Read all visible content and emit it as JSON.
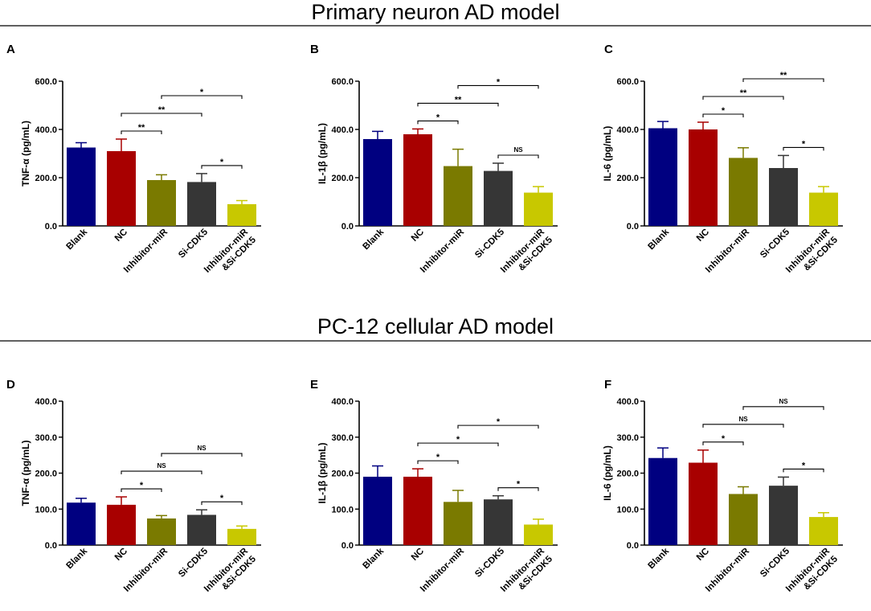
{
  "sections": [
    {
      "title": "Primary neuron AD model"
    },
    {
      "title": "PC-12 cellular AD model"
    }
  ],
  "colors": {
    "Blank": "#000080",
    "NC": "#a80000",
    "Inhibitor-miR": "#7a7a00",
    "Si-CDK5": "#363636",
    "Inhibitor-miR &Si-CDK5": "#c8c800"
  },
  "chart_data": [
    {
      "panel": "A",
      "type": "bar",
      "ylabel": "TNF-α (pg/mL)",
      "ylim": [
        0,
        600
      ],
      "yticks": [
        "0.0",
        "200.0",
        "400.0",
        "600.0"
      ],
      "categories": [
        "Blank",
        "NC",
        "Inhibitor-miR",
        "Si-CDK5",
        "Inhibitor-miR &Si-CDK5"
      ],
      "values": [
        325,
        310,
        190,
        182,
        90
      ],
      "errors": [
        20,
        50,
        22,
        35,
        15
      ],
      "comparisons": [
        {
          "from": 1,
          "to": 3,
          "label": "**"
        },
        {
          "from": 1,
          "to": 2,
          "label": "**"
        },
        {
          "from": 2,
          "to": 4,
          "label": "*"
        },
        {
          "from": 3,
          "to": 4,
          "label": "*"
        }
      ]
    },
    {
      "panel": "B",
      "type": "bar",
      "ylabel": "IL-1β (pg/mL)",
      "ylim": [
        0,
        600
      ],
      "yticks": [
        "0.0",
        "200.0",
        "400.0",
        "600.0"
      ],
      "categories": [
        "Blank",
        "NC",
        "Inhibitor-miR",
        "Si-CDK5",
        "Inhibitor-miR &Si-CDK5"
      ],
      "values": [
        360,
        380,
        248,
        228,
        138
      ],
      "errors": [
        32,
        22,
        70,
        32,
        25
      ],
      "comparisons": [
        {
          "from": 1,
          "to": 3,
          "label": "**"
        },
        {
          "from": 1,
          "to": 2,
          "label": "*"
        },
        {
          "from": 2,
          "to": 4,
          "label": "*"
        },
        {
          "from": 3,
          "to": 4,
          "label": "NS"
        }
      ]
    },
    {
      "panel": "C",
      "type": "bar",
      "ylabel": "IL-6 (pg/mL)",
      "ylim": [
        0,
        600
      ],
      "yticks": [
        "0.0",
        "200.0",
        "400.0",
        "600.0"
      ],
      "categories": [
        "Blank",
        "NC",
        "Inhibitor-miR",
        "Si-CDK5",
        "Inhibitor-miR &Si-CDK5"
      ],
      "values": [
        405,
        400,
        282,
        240,
        138
      ],
      "errors": [
        28,
        30,
        42,
        52,
        25
      ],
      "comparisons": [
        {
          "from": 1,
          "to": 3,
          "label": "**"
        },
        {
          "from": 1,
          "to": 2,
          "label": "*"
        },
        {
          "from": 2,
          "to": 4,
          "label": "**"
        },
        {
          "from": 3,
          "to": 4,
          "label": "*"
        }
      ]
    },
    {
      "panel": "D",
      "type": "bar",
      "ylabel": "TNF-α (pg/mL)",
      "ylim": [
        0,
        400
      ],
      "yticks": [
        "0.0",
        "100.0",
        "200.0",
        "300.0",
        "400.0"
      ],
      "categories": [
        "Blank",
        "NC",
        "Inhibitor-miR",
        "Si-CDK5",
        "Inhibitor-miR &Si-CDK5"
      ],
      "values": [
        118,
        112,
        74,
        84,
        45
      ],
      "errors": [
        12,
        22,
        8,
        14,
        8
      ],
      "comparisons": [
        {
          "from": 1,
          "to": 3,
          "label": "NS"
        },
        {
          "from": 1,
          "to": 2,
          "label": "*"
        },
        {
          "from": 2,
          "to": 4,
          "label": "NS"
        },
        {
          "from": 3,
          "to": 4,
          "label": "*"
        }
      ]
    },
    {
      "panel": "E",
      "type": "bar",
      "ylabel": "IL-1β (pg/mL)",
      "ylim": [
        0,
        400
      ],
      "yticks": [
        "0.0",
        "100.0",
        "200.0",
        "300.0",
        "400.0"
      ],
      "categories": [
        "Blank",
        "NC",
        "Inhibitor-miR",
        "Si-CDK5",
        "Inhibitor-miR &Si-CDK5"
      ],
      "values": [
        190,
        190,
        120,
        127,
        57
      ],
      "errors": [
        30,
        22,
        32,
        10,
        15
      ],
      "comparisons": [
        {
          "from": 1,
          "to": 3,
          "label": "*"
        },
        {
          "from": 1,
          "to": 2,
          "label": "*"
        },
        {
          "from": 2,
          "to": 4,
          "label": "*"
        },
        {
          "from": 3,
          "to": 4,
          "label": "*"
        }
      ]
    },
    {
      "panel": "F",
      "type": "bar",
      "ylabel": "IL-6 (pg/mL)",
      "ylim": [
        0,
        400
      ],
      "yticks": [
        "0.0",
        "100.0",
        "200.0",
        "300.0",
        "400.0"
      ],
      "categories": [
        "Blank",
        "NC",
        "Inhibitor-miR",
        "Si-CDK5",
        "Inhibitor-miR &Si-CDK5"
      ],
      "values": [
        242,
        229,
        142,
        165,
        78
      ],
      "errors": [
        28,
        35,
        20,
        24,
        12
      ],
      "comparisons": [
        {
          "from": 1,
          "to": 3,
          "label": "NS"
        },
        {
          "from": 1,
          "to": 2,
          "label": "*"
        },
        {
          "from": 2,
          "to": 4,
          "label": "NS"
        },
        {
          "from": 3,
          "to": 4,
          "label": "*"
        }
      ]
    }
  ]
}
